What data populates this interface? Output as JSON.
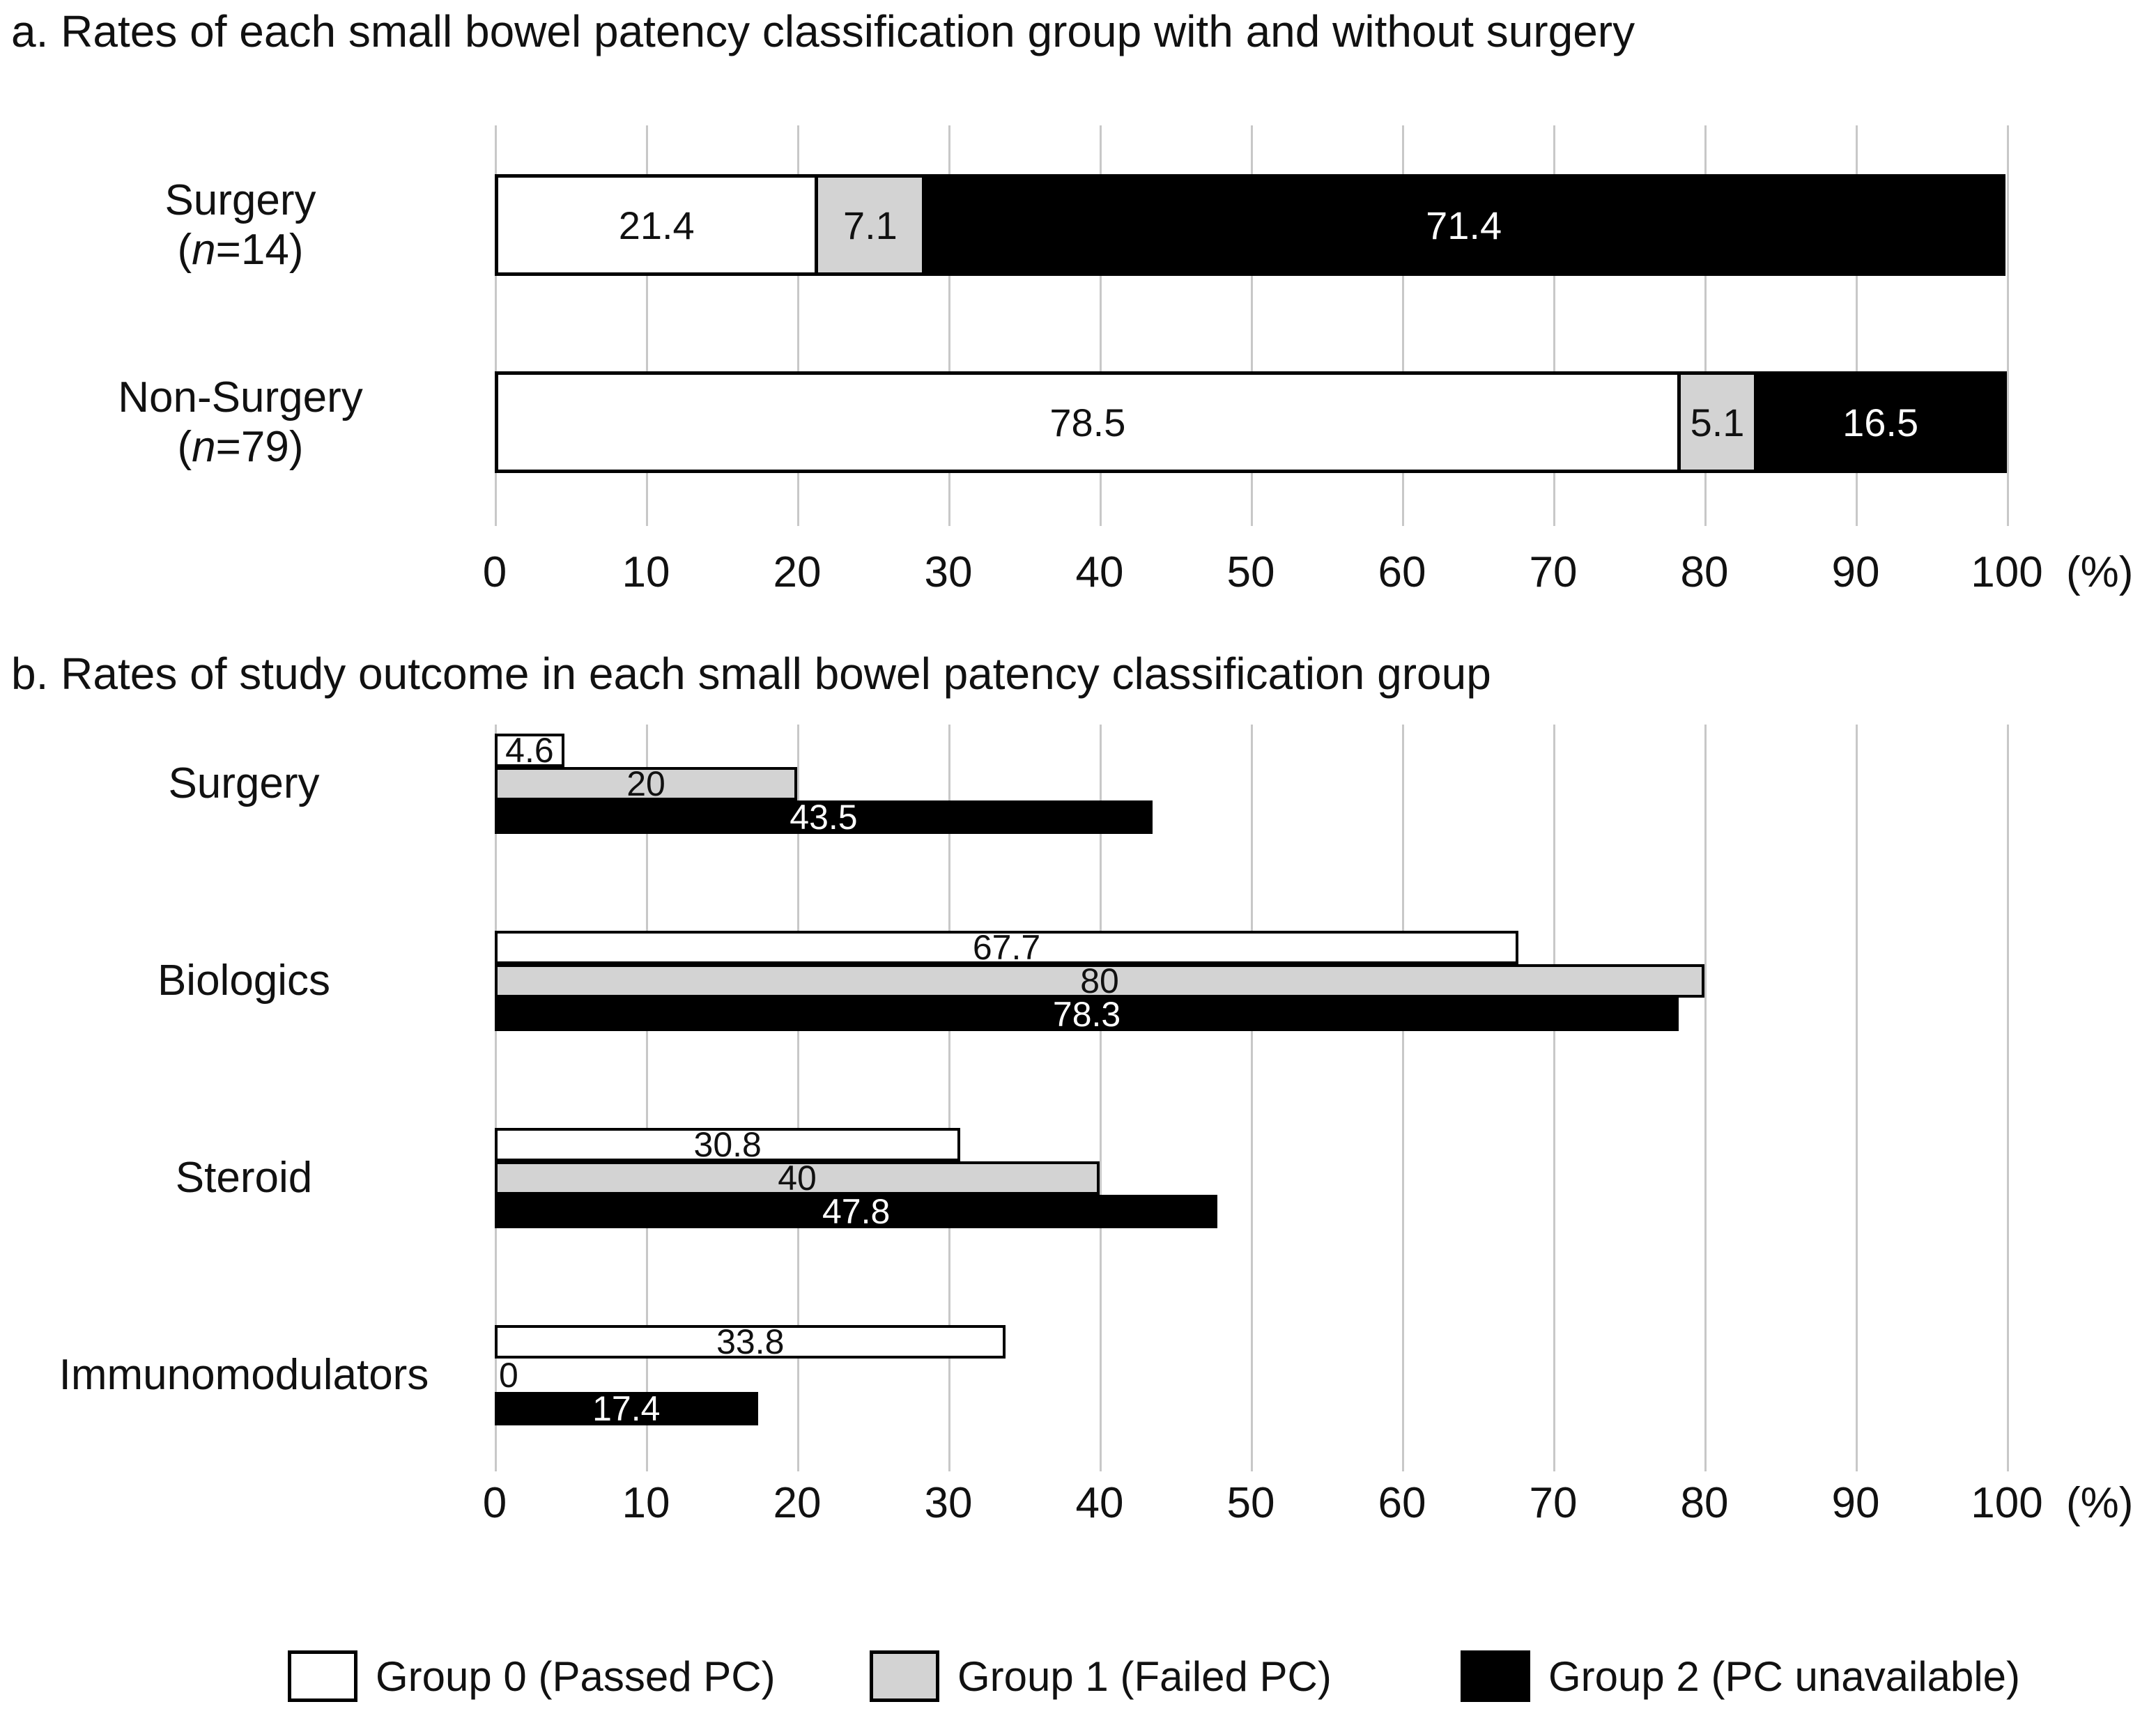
{
  "figure": {
    "background": "#ffffff",
    "text_color": "#111111",
    "gridline_color": "#c8c8c8",
    "bar_border_color": "#000000"
  },
  "ui": {
    "panel_a_rows": [
      {
        "line1": "Surgery",
        "paren_open": "(",
        "n": "n",
        "rest": "=14)"
      },
      {
        "line1": "Non-Surgery",
        "paren_open": "(",
        "n": "n",
        "rest": "=79)"
      }
    ]
  },
  "chart_data": [
    {
      "type": "bar",
      "subtype": "horizontal-stacked",
      "title": "a. Rates of each small bowel patency classification group with and without surgery",
      "categories": [
        "Surgery (n=14)",
        "Non-Surgery (n=79)"
      ],
      "series": [
        {
          "name": "Group 0 (Passed PC)",
          "color": "#ffffff",
          "values": [
            21.4,
            78.5
          ]
        },
        {
          "name": "Group 1 (Failed PC)",
          "color": "#d3d3d3",
          "values": [
            7.1,
            5.1
          ]
        },
        {
          "name": "Group 2 (PC unavailable)",
          "color": "#000000",
          "values": [
            71.4,
            16.5
          ]
        }
      ],
      "xlim": [
        0,
        100
      ],
      "xticks": [
        0,
        10,
        20,
        30,
        40,
        50,
        60,
        70,
        80,
        90,
        100
      ],
      "x_unit": "(%)",
      "grid": true,
      "legend_position": "shared-bottom"
    },
    {
      "type": "bar",
      "subtype": "horizontal-grouped",
      "title": "b. Rates of study outcome in each small bowel patency classification group",
      "categories": [
        "Surgery",
        "Biologics",
        "Steroid",
        "Immunomodulators"
      ],
      "series": [
        {
          "name": "Group 0 (Passed PC)",
          "color": "#ffffff",
          "values": [
            4.6,
            67.7,
            30.8,
            33.8
          ]
        },
        {
          "name": "Group 1 (Failed PC)",
          "color": "#d3d3d3",
          "values": [
            20,
            80,
            40,
            0
          ]
        },
        {
          "name": "Group 2 (PC unavailable)",
          "color": "#000000",
          "values": [
            43.5,
            78.3,
            47.8,
            17.4
          ]
        }
      ],
      "xlim": [
        0,
        100
      ],
      "xticks": [
        0,
        10,
        20,
        30,
        40,
        50,
        60,
        70,
        80,
        90,
        100
      ],
      "x_unit": "(%)",
      "grid": true,
      "legend_position": "bottom"
    }
  ]
}
